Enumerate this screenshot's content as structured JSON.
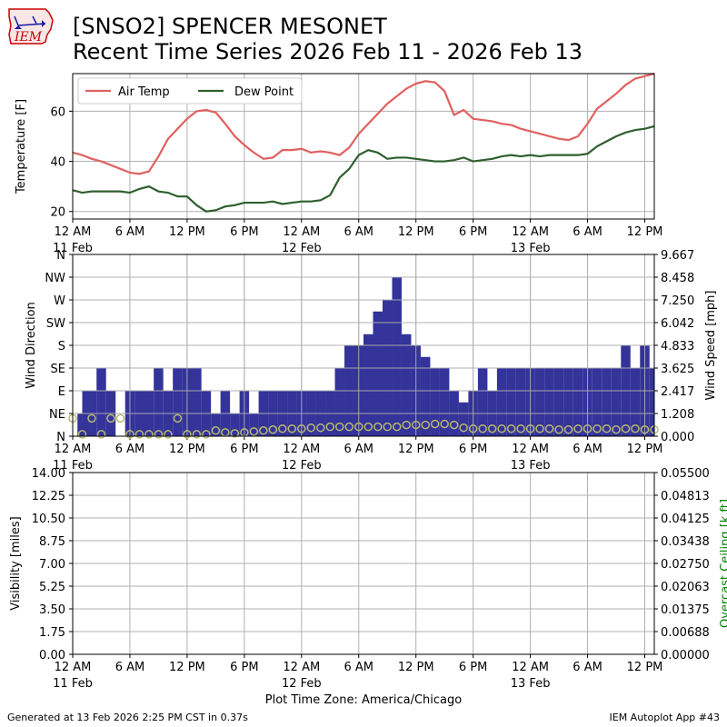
{
  "header": {
    "logo_text": "IEM",
    "title_line1": "[SNSO2] SPENCER MESONET",
    "title_line2": "Recent Time Series 2026 Feb 11 - 2026 Feb 13"
  },
  "footer": {
    "generated": "Generated at 13 Feb 2026 2:25 PM CST in 0.37s",
    "app": "IEM Autoplot App #43",
    "timezone": "Plot Time Zone: America/Chicago"
  },
  "colors": {
    "air_temp": "#e06060",
    "dew_point": "#2f5f2f",
    "wind_dir": "#333399",
    "wind_speed_marker": "#b8b870",
    "ceiling_label": "#008000",
    "grid": "#b0b0b0"
  },
  "chart_data": [
    {
      "type": "line",
      "ylabel": "Temperature [F]",
      "ylim": [
        17,
        75
      ],
      "yticks": [
        "20",
        "40",
        "60"
      ],
      "xlim_hours": [
        0,
        61
      ],
      "xticks": [
        "12 AM",
        "6 AM",
        "12 PM",
        "6 PM",
        "12 AM",
        "6 AM",
        "12 PM",
        "6 PM",
        "12 AM",
        "6 AM",
        "12 PM"
      ],
      "xtick_dates": [
        "11 Feb",
        "",
        "",
        "",
        "12 Feb",
        "",
        "",
        "",
        "13 Feb",
        "",
        ""
      ],
      "grid": true,
      "legend_position": "top-left",
      "series": [
        {
          "name": "Air Temp",
          "x_hours": [
            0,
            1,
            2,
            3,
            4,
            5,
            6,
            7,
            8,
            9,
            10,
            11,
            12,
            13,
            14,
            15,
            16,
            17,
            18,
            19,
            20,
            21,
            22,
            23,
            24,
            25,
            26,
            27,
            28,
            29,
            30,
            31,
            32,
            33,
            34,
            35,
            36,
            37,
            38,
            39,
            40,
            41,
            42,
            43,
            44,
            45,
            46,
            47,
            48,
            49,
            50,
            51,
            52,
            53,
            54,
            55,
            56,
            57,
            58,
            59,
            60,
            61
          ],
          "values": [
            43.5,
            42.5,
            41,
            40,
            38.5,
            37,
            35.5,
            35,
            36,
            42,
            49,
            53,
            57,
            60,
            60.5,
            59.5,
            55,
            50,
            46.5,
            43.5,
            41,
            41.5,
            44.5,
            44.5,
            45,
            43.5,
            44,
            43.5,
            42.5,
            45.5,
            51,
            55,
            59,
            63,
            66,
            69,
            71,
            72,
            71.5,
            68,
            58.5,
            60.5,
            57,
            56.5,
            56,
            55,
            54.5,
            53,
            52,
            51,
            50,
            49,
            48.5,
            50,
            55,
            61,
            64,
            67,
            70.5,
            73,
            74,
            75
          ]
        },
        {
          "name": "Dew Point",
          "x_hours": [
            0,
            1,
            2,
            3,
            4,
            5,
            6,
            7,
            8,
            9,
            10,
            11,
            12,
            13,
            14,
            15,
            16,
            17,
            18,
            19,
            20,
            21,
            22,
            23,
            24,
            25,
            26,
            27,
            28,
            29,
            30,
            31,
            32,
            33,
            34,
            35,
            36,
            37,
            38,
            39,
            40,
            41,
            42,
            43,
            44,
            45,
            46,
            47,
            48,
            49,
            50,
            51,
            52,
            53,
            54,
            55,
            56,
            57,
            58,
            59,
            60,
            61
          ],
          "values": [
            28.5,
            27.5,
            28,
            28,
            28,
            28,
            27.5,
            29,
            30,
            28,
            27.5,
            26,
            26,
            22.5,
            20,
            20.5,
            22,
            22.5,
            23.5,
            23.5,
            23.5,
            24,
            23,
            23.5,
            24,
            24,
            24.5,
            26.5,
            33.5,
            37,
            42.5,
            44.5,
            43.5,
            41,
            41.5,
            41.5,
            41,
            40.5,
            40,
            40,
            40.5,
            41.5,
            40,
            40.5,
            41,
            42,
            42.5,
            42,
            42.5,
            42,
            42.5,
            42.5,
            42.5,
            42.5,
            43,
            46,
            48,
            50,
            51.5,
            52.5,
            53,
            54
          ]
        }
      ]
    },
    {
      "type": "bar",
      "ylabel": "Wind Direction",
      "y2label": "Wind Speed [mph]",
      "yticks": [
        "N",
        "NE",
        "E",
        "SE",
        "S",
        "SW",
        "W",
        "NW",
        "N"
      ],
      "y2ticks": [
        "0.000",
        "1.208",
        "2.417",
        "3.625",
        "4.833",
        "6.042",
        "7.250",
        "8.458",
        "9.667"
      ],
      "ylim_degrees": [
        0,
        360
      ],
      "y2lim": [
        0,
        9.667
      ],
      "xlim_hours": [
        0,
        61
      ],
      "xticks": [
        "12 AM",
        "6 AM",
        "12 PM",
        "6 PM",
        "12 AM",
        "6 AM",
        "12 PM",
        "6 PM",
        "12 AM",
        "6 AM",
        "12 PM"
      ],
      "xtick_dates": [
        "11 Feb",
        "",
        "",
        "",
        "12 Feb",
        "",
        "",
        "",
        "13 Feb",
        "",
        ""
      ],
      "grid": true,
      "direction_bars": {
        "x_start_hours": [
          0.5,
          1,
          2.5,
          3.5,
          4.5,
          5.5,
          6.5,
          8.5,
          9.5,
          10.5,
          11.5,
          13.5,
          14.5,
          15.5,
          16.5,
          17.5,
          18.5,
          19.5,
          20.5,
          21.5,
          22.5,
          23.5,
          24.5,
          25.5,
          26.5,
          27.5,
          28.5,
          29.5,
          30.5,
          31.5,
          32.5,
          33.5,
          34.5,
          35.5,
          36.5,
          37.5,
          38.5,
          39.5,
          40.5,
          41.5,
          42.5,
          43.5,
          44.5,
          45.5,
          46.5,
          47.5,
          48.5,
          49.5,
          50.5,
          51.5,
          52.5,
          53.5,
          54.5,
          55.5,
          56.5,
          57.5,
          58.5,
          59.5,
          60.5
        ],
        "x_end_hours": [
          1,
          2.5,
          3.5,
          4.5,
          5.5,
          6.5,
          8.5,
          9.5,
          10.5,
          11.5,
          13.5,
          14.5,
          15.5,
          16.5,
          17.5,
          18.5,
          19.5,
          20.5,
          21.5,
          22.5,
          23.5,
          24.5,
          25.5,
          26.5,
          27.5,
          28.5,
          29.5,
          30.5,
          31.5,
          32.5,
          33.5,
          34.5,
          35.5,
          36.5,
          37.5,
          38.5,
          39.5,
          40.5,
          41.5,
          42.5,
          43.5,
          44.5,
          45.5,
          46.5,
          47.5,
          48.5,
          49.5,
          50.5,
          51.5,
          52.5,
          53.5,
          54.5,
          55.5,
          56.5,
          57.5,
          58.5,
          59.5,
          60.5,
          61
        ],
        "degrees": [
          45,
          90,
          135,
          90,
          0,
          90,
          90,
          135,
          90,
          135,
          135,
          90,
          45,
          90,
          45,
          90,
          45,
          90,
          90,
          90,
          90,
          90,
          90,
          90,
          90,
          135,
          180,
          180,
          202,
          247,
          270,
          315,
          202,
          180,
          157,
          135,
          135,
          90,
          67,
          90,
          135,
          90,
          135,
          135,
          135,
          135,
          135,
          135,
          135,
          135,
          135,
          135,
          135,
          135,
          135,
          180,
          135,
          180,
          135
        ]
      },
      "speed_markers": {
        "x_hours": [
          0,
          1,
          2,
          3,
          4,
          5,
          6,
          7,
          8,
          9,
          10,
          11,
          12,
          13,
          14,
          15,
          16,
          17,
          18,
          19,
          20,
          21,
          22,
          23,
          24,
          25,
          26,
          27,
          28,
          29,
          30,
          31,
          32,
          33,
          34,
          35,
          36,
          37,
          38,
          39,
          40,
          41,
          42,
          43,
          44,
          45,
          46,
          47,
          48,
          49,
          50,
          51,
          52,
          53,
          54,
          55,
          56,
          57,
          58,
          59,
          60,
          61
        ],
        "values_mph": [
          0.95,
          0.1,
          0.95,
          0.1,
          0.95,
          0.95,
          0.1,
          0.1,
          0.1,
          0.1,
          0.1,
          0.95,
          0.1,
          0.1,
          0.1,
          0.3,
          0.2,
          0.15,
          0.2,
          0.25,
          0.3,
          0.35,
          0.4,
          0.4,
          0.4,
          0.45,
          0.45,
          0.5,
          0.5,
          0.5,
          0.5,
          0.5,
          0.5,
          0.5,
          0.5,
          0.6,
          0.6,
          0.6,
          0.65,
          0.65,
          0.6,
          0.45,
          0.4,
          0.4,
          0.4,
          0.4,
          0.4,
          0.4,
          0.4,
          0.4,
          0.4,
          0.35,
          0.35,
          0.4,
          0.4,
          0.4,
          0.4,
          0.35,
          0.4,
          0.4,
          0.35,
          0.35
        ]
      }
    },
    {
      "type": "line",
      "ylabel": "Visibility [miles]",
      "y2label": "Overcast Ceiling [k ft]",
      "yticks": [
        "0.00",
        "1.75",
        "3.50",
        "5.25",
        "7.00",
        "8.75",
        "10.50",
        "12.25",
        "14.00"
      ],
      "y2ticks": [
        "0.00000",
        "0.00688",
        "0.01375",
        "0.02063",
        "0.02750",
        "0.03438",
        "0.04125",
        "0.04813",
        "0.05500"
      ],
      "ylim": [
        0,
        14
      ],
      "y2lim": [
        0,
        0.055
      ],
      "xlim_hours": [
        0,
        61
      ],
      "xticks": [
        "12 AM",
        "6 AM",
        "12 PM",
        "6 PM",
        "12 AM",
        "6 AM",
        "12 PM",
        "6 PM",
        "12 AM",
        "6 AM",
        "12 PM"
      ],
      "xtick_dates": [
        "11 Feb",
        "",
        "",
        "",
        "12 Feb",
        "",
        "",
        "",
        "13 Feb",
        "",
        ""
      ],
      "grid": true,
      "series": []
    }
  ]
}
